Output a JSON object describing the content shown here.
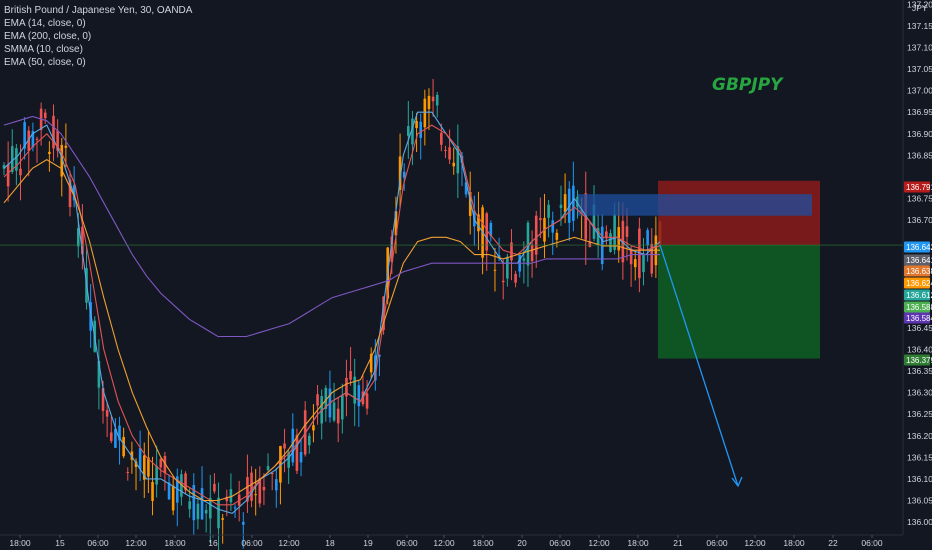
{
  "header": {
    "instrument": "British Pound / Japanese Yen, 30, OANDA",
    "indicators": [
      "EMA (14, close, 0)",
      "EMA (200, close, 0)",
      "SMMA (10, close)",
      "EMA (50, close, 0)"
    ]
  },
  "watermark": "GBPJPY",
  "colors": {
    "background": "#131722",
    "up_candle": "#26a69a",
    "down_candle": "#ef5350",
    "candle_alt_up": "#2196f3",
    "candle_alt_down": "#ff9800",
    "ema14": "#5aa9e6",
    "ema200": "#7e57c2",
    "smma10": "#e05555",
    "ema50": "#f0a030",
    "short_position_stop": "#8b1a1a",
    "short_position_target": "#0e5c24",
    "blue_box": "#1e4fa0",
    "projection_arrow": "#2196f3"
  },
  "chart_data": {
    "type": "candlestick",
    "title": "British Pound / Japanese Yen, 30, OANDA",
    "currency": "JPY",
    "ylim": [
      135.97,
      137.21
    ],
    "y_ticks": [
      137.2,
      137.15,
      137.1,
      137.05,
      137.0,
      136.95,
      136.9,
      136.85,
      136.75,
      136.7,
      136.45,
      136.4,
      136.35,
      136.3,
      136.25,
      136.2,
      136.15,
      136.1,
      136.05,
      136.0
    ],
    "x_ticks": [
      "18:00",
      "15",
      "06:00",
      "12:00",
      "18:00",
      "16",
      "06:00",
      "12:00",
      "18",
      "19",
      "06:00",
      "12:00",
      "18:00",
      "20",
      "06:00",
      "12:00",
      "18:00",
      "21",
      "06:00",
      "12:00",
      "18:00",
      "22",
      "06:00"
    ],
    "price_tags": [
      {
        "value": "136.791",
        "color": "#b71c1c"
      },
      {
        "value": "136.642",
        "color": "#2196f3"
      },
      {
        "value": "136.641",
        "color": "#5d606b"
      },
      {
        "value": "136.638",
        "color": "#e0762c"
      },
      {
        "value": "136.624",
        "color": "#ff9800"
      },
      {
        "value": "136.612",
        "color": "#26a69a"
      },
      {
        "value": "136.588",
        "color": "#4caf50"
      },
      {
        "value": "136.584",
        "color": "#5e35b1"
      },
      {
        "value": "136.379",
        "color": "#2e7d32"
      }
    ],
    "short_position": {
      "entry": 136.642,
      "stop": 136.791,
      "target": 136.379
    },
    "blue_zone": {
      "top": 136.76,
      "bottom": 136.71
    },
    "series": [
      {
        "name": "EMA (14, close, 0)",
        "color": "#5aa9e6",
        "values": [
          136.82,
          136.85,
          136.9,
          136.92,
          136.85,
          136.75,
          136.5,
          136.3,
          136.2,
          136.15,
          136.1,
          136.1,
          136.08,
          136.06,
          136.05,
          136.03,
          136.02,
          136.05,
          136.1,
          136.12,
          136.15,
          136.2,
          136.25,
          136.28,
          136.3,
          136.28,
          136.35,
          136.6,
          136.85,
          136.95,
          136.95,
          136.9,
          136.85,
          136.7,
          136.65,
          136.6,
          136.6,
          136.65,
          136.68,
          136.7,
          136.75,
          136.7,
          136.65,
          136.66,
          136.63,
          136.62,
          136.65
        ]
      },
      {
        "name": "SMMA (10, close)",
        "color": "#e05555",
        "values": [
          136.8,
          136.83,
          136.87,
          136.9,
          136.86,
          136.78,
          136.6,
          136.4,
          136.28,
          136.2,
          136.15,
          136.12,
          136.1,
          136.08,
          136.06,
          136.04,
          136.04,
          136.06,
          136.1,
          136.13,
          136.16,
          136.2,
          136.25,
          136.28,
          136.3,
          136.28,
          136.33,
          136.55,
          136.78,
          136.9,
          136.92,
          136.9,
          136.86,
          136.72,
          136.67,
          136.63,
          136.62,
          136.65,
          136.68,
          136.7,
          136.73,
          136.7,
          136.66,
          136.66,
          136.64,
          136.63,
          136.64
        ]
      },
      {
        "name": "EMA (50, close, 0)",
        "color": "#f0a030",
        "values": [
          136.74,
          136.78,
          136.82,
          136.84,
          136.82,
          136.75,
          136.65,
          136.52,
          136.4,
          136.3,
          136.22,
          136.15,
          136.1,
          136.07,
          136.05,
          136.05,
          136.06,
          136.08,
          136.1,
          136.13,
          136.17,
          136.22,
          136.26,
          136.3,
          136.32,
          136.33,
          136.4,
          136.5,
          136.6,
          136.65,
          136.66,
          136.66,
          136.65,
          136.62,
          136.62,
          136.61,
          136.62,
          136.63,
          136.64,
          136.65,
          136.66,
          136.65,
          136.64,
          136.64,
          136.63,
          136.63,
          136.63
        ]
      },
      {
        "name": "EMA (200, close, 0)",
        "color": "#7e57c2",
        "values": [
          136.92,
          136.93,
          136.94,
          136.93,
          136.9,
          136.85,
          136.8,
          136.74,
          136.68,
          136.62,
          136.57,
          136.53,
          136.5,
          136.47,
          136.45,
          136.43,
          136.43,
          136.43,
          136.44,
          136.45,
          136.46,
          136.48,
          136.5,
          136.52,
          136.53,
          136.54,
          136.55,
          136.56,
          136.58,
          136.59,
          136.6,
          136.6,
          136.6,
          136.6,
          136.6,
          136.6,
          136.6,
          136.6,
          136.61,
          136.61,
          136.61,
          136.61,
          136.61,
          136.61,
          136.62,
          136.62,
          136.62
        ]
      }
    ]
  }
}
